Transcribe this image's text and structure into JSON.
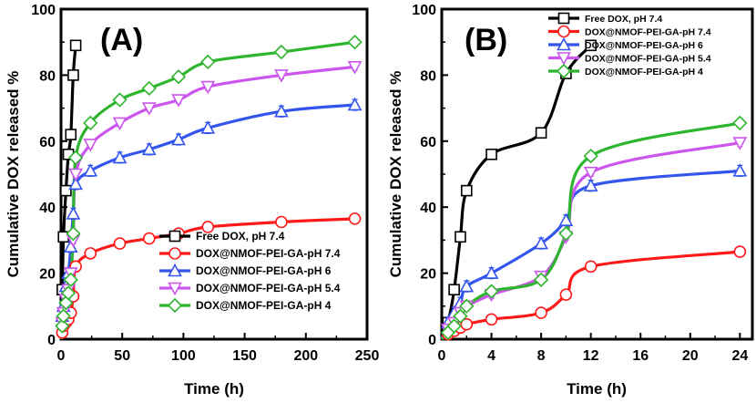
{
  "chart_data": [
    {
      "panel": "(A)",
      "type": "line",
      "xlabel": "Time (h)",
      "ylabel": "Cumulative DOX released %",
      "xlim": [
        0,
        250
      ],
      "ylim": [
        0,
        100
      ],
      "xticks": [
        0,
        50,
        100,
        150,
        200,
        250
      ],
      "yticks": [
        0,
        20,
        40,
        60,
        80,
        100
      ],
      "legend_position": "lower-right",
      "series": [
        {
          "name": "Free DOX, pH 7.4",
          "color": "#000000",
          "marker": "square",
          "x": [
            0,
            1,
            2,
            4,
            6,
            8,
            10,
            12
          ],
          "y": [
            0,
            15,
            31,
            45,
            56,
            62,
            80,
            89
          ]
        },
        {
          "name": "DOX@NMOF-PEI-GA-pH 7.4",
          "color": "#ff1a1a",
          "marker": "circle",
          "x": [
            0,
            1,
            2,
            4,
            6,
            8,
            10,
            12,
            24,
            48,
            72,
            96,
            120,
            180,
            240
          ],
          "y": [
            0,
            2,
            4,
            5,
            6,
            8,
            13,
            22,
            26,
            29,
            30.5,
            32,
            34,
            35.5,
            36.5
          ]
        },
        {
          "name": "DOX@NMOF-PEI-GA-pH 6",
          "color": "#3355ee",
          "marker": "triangle",
          "x": [
            0,
            1,
            2,
            4,
            6,
            8,
            10,
            12,
            24,
            48,
            72,
            96,
            120,
            180,
            240
          ],
          "y": [
            0,
            7,
            10,
            16,
            20,
            28,
            38,
            47,
            51,
            55,
            57.5,
            60.5,
            64,
            69,
            71
          ]
        },
        {
          "name": "DOX@NMOF-PEI-GA-pH 5.4",
          "color": "#cc55ee",
          "marker": "triangle-down",
          "x": [
            0,
            1,
            2,
            4,
            6,
            8,
            10,
            12,
            24,
            48,
            72,
            96,
            120,
            180,
            240
          ],
          "y": [
            0,
            5,
            8,
            12,
            15,
            20,
            30,
            50,
            59,
            65.5,
            70,
            72.5,
            76.5,
            80,
            82.5
          ]
        },
        {
          "name": "DOX@NMOF-PEI-GA-pH  4",
          "color": "#2db52d",
          "marker": "diamond",
          "x": [
            0,
            1,
            2,
            4,
            6,
            8,
            10,
            12,
            24,
            48,
            72,
            96,
            120,
            180,
            240
          ],
          "y": [
            0,
            4,
            7,
            11,
            14,
            18,
            32,
            55,
            65.5,
            72.5,
            76,
            79.5,
            84,
            87,
            90
          ]
        }
      ]
    },
    {
      "panel": "(B)",
      "type": "line",
      "xlabel": "Time (h)",
      "ylabel": "Cumulative DOX released %",
      "xlim": [
        0,
        25
      ],
      "ylim": [
        0,
        100
      ],
      "xticks": [
        0,
        4,
        8,
        12,
        16,
        20,
        24
      ],
      "yticks": [
        0,
        20,
        40,
        60,
        80,
        100
      ],
      "legend_position": "top-center",
      "series": [
        {
          "name": "Free DOX, pH 7.4",
          "color": "#000000",
          "marker": "square",
          "x": [
            0,
            0.5,
            1,
            1.5,
            2,
            4,
            8,
            10,
            12
          ],
          "y": [
            0,
            5,
            15,
            31,
            45,
            56,
            62.5,
            80.5,
            89
          ]
        },
        {
          "name": "DOX@NMOF-PEI-GA-pH 7.4",
          "color": "#ff1a1a",
          "marker": "circle",
          "x": [
            0,
            0.5,
            1,
            1.5,
            2,
            4,
            8,
            10,
            12,
            24
          ],
          "y": [
            0,
            1.5,
            2.5,
            3.5,
            4.5,
            6,
            8,
            13.5,
            22,
            26.5
          ]
        },
        {
          "name": "DOX@NMOF-PEI-GA-pH 6",
          "color": "#3355ee",
          "marker": "triangle",
          "x": [
            0,
            0.5,
            1,
            1.5,
            2,
            4,
            8,
            10,
            12,
            24
          ],
          "y": [
            0,
            5,
            8,
            11,
            16,
            20,
            29,
            36,
            46.5,
            51
          ]
        },
        {
          "name": "DOX@NMOF-PEI-GA-pH 5.4",
          "color": "#cc55ee",
          "marker": "triangle-down",
          "x": [
            0,
            0.5,
            1,
            1.5,
            2,
            4,
            8,
            10,
            12,
            24
          ],
          "y": [
            0,
            3,
            5,
            8,
            10,
            13.5,
            19,
            31,
            50.5,
            59.5
          ]
        },
        {
          "name": "DOX@NMOF-PEI-GA-pH  4",
          "color": "#2db52d",
          "marker": "diamond",
          "x": [
            0,
            0.5,
            1,
            1.5,
            2,
            4,
            8,
            10,
            12,
            24
          ],
          "y": [
            0,
            2,
            4,
            7,
            10,
            14.5,
            18,
            32,
            55.5,
            65.5
          ]
        }
      ]
    }
  ]
}
